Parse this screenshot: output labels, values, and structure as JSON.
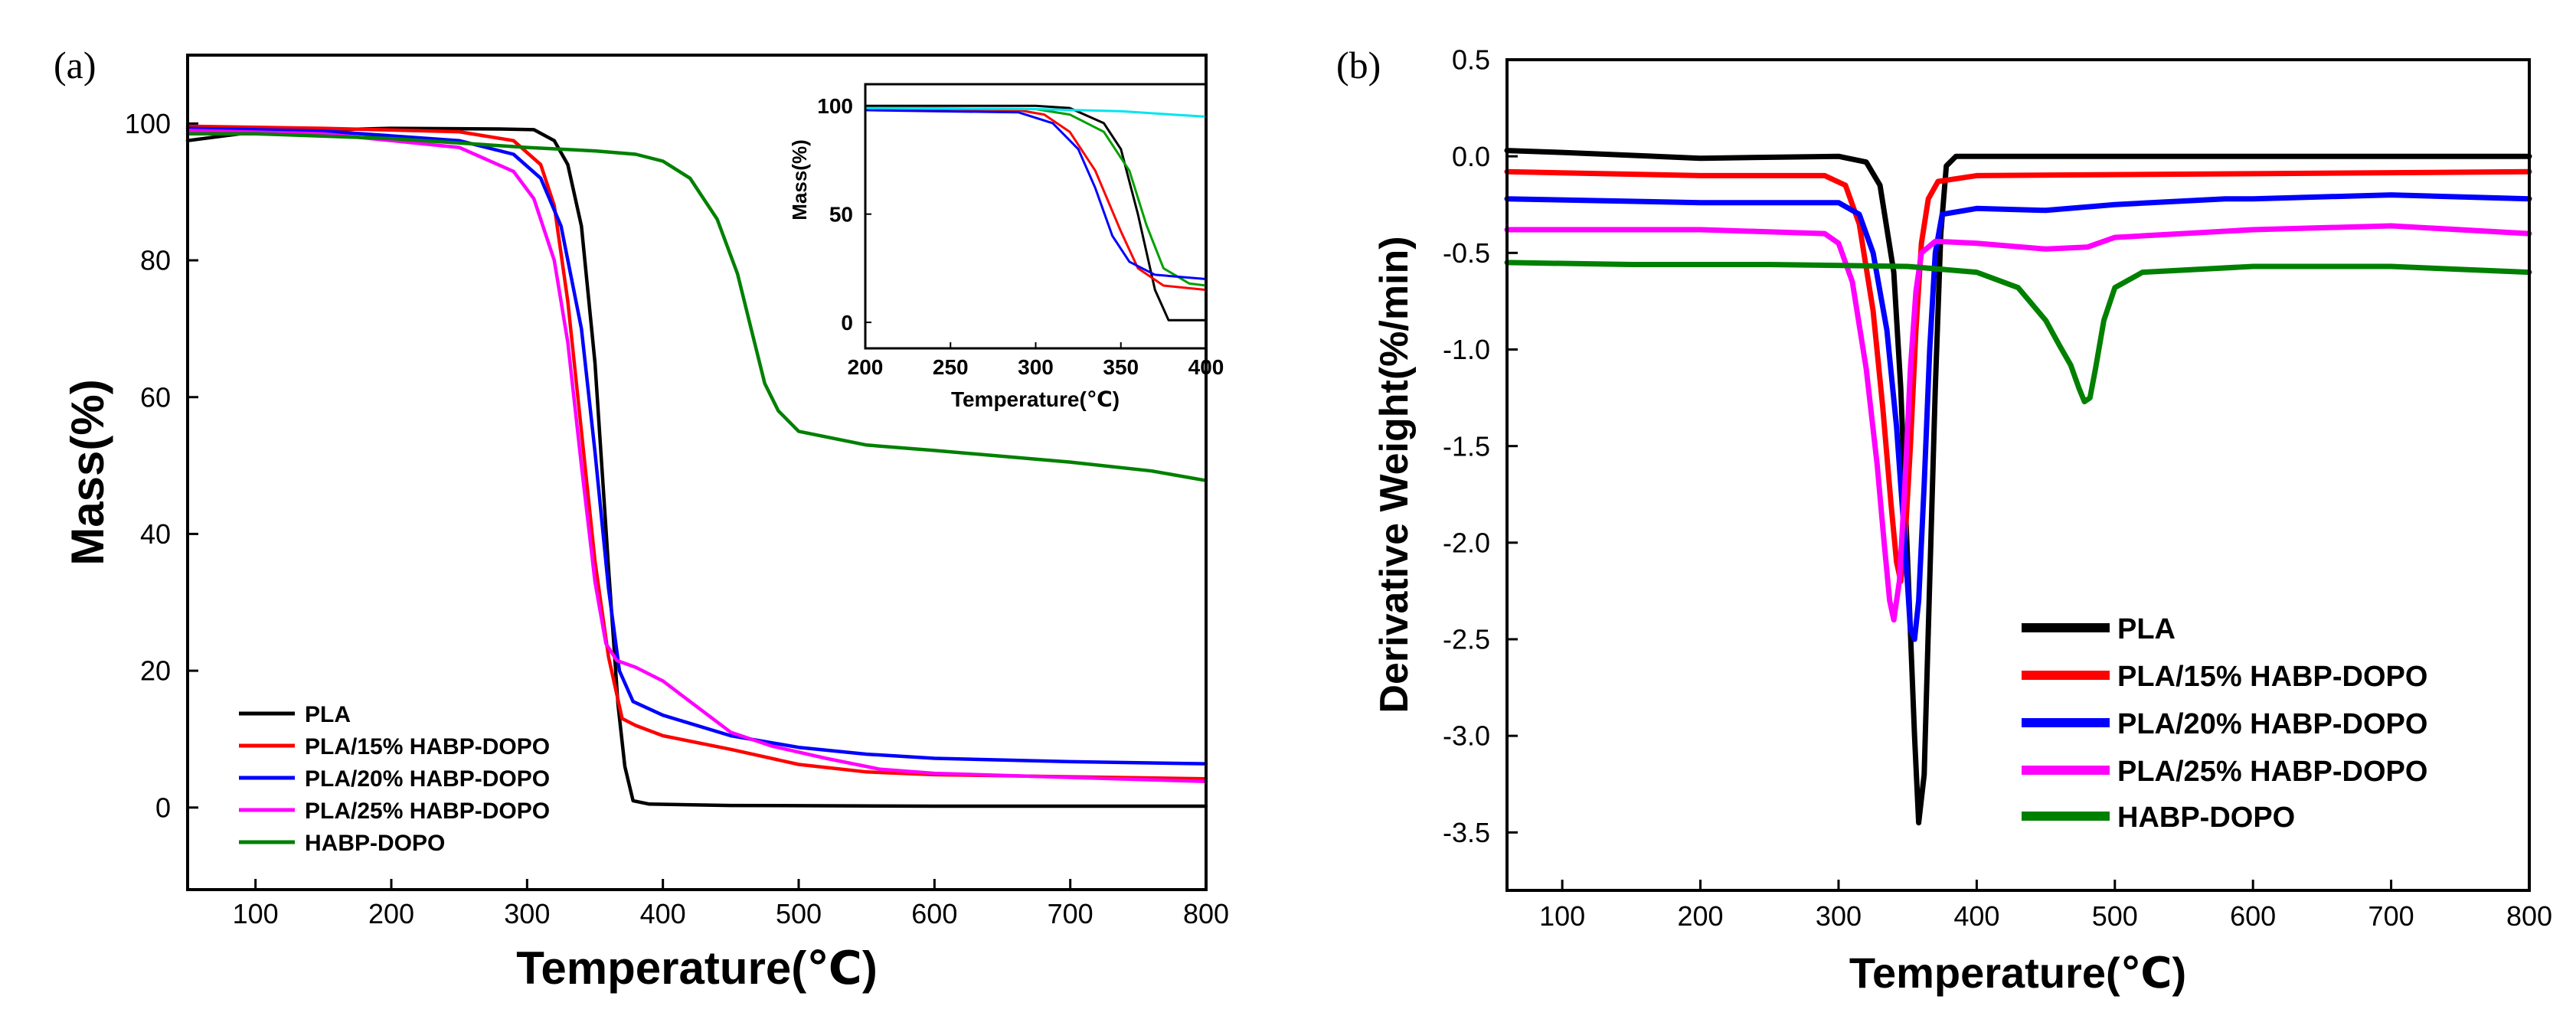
{
  "chart_data": [
    {
      "type": "line",
      "panel_label": "(a)",
      "title": "",
      "xlabel": "Temperature(℃)",
      "ylabel": "Mass(%)",
      "xlim": [
        50,
        800
      ],
      "ylim": [
        -12,
        110
      ],
      "xticks": [
        100,
        200,
        300,
        400,
        500,
        600,
        700,
        800
      ],
      "yticks": [
        0,
        20,
        40,
        60,
        80,
        100
      ],
      "legend_position": "bottom-left",
      "series": [
        {
          "name": "PLA",
          "color": "#000000",
          "points": [
            [
              50,
              97.5
            ],
            [
              100,
              98.8
            ],
            [
              200,
              99.3
            ],
            [
              280,
              99.2
            ],
            [
              305,
              99.1
            ],
            [
              320,
              97.5
            ],
            [
              330,
              94
            ],
            [
              340,
              85
            ],
            [
              350,
              65
            ],
            [
              360,
              35
            ],
            [
              367,
              15
            ],
            [
              372,
              6
            ],
            [
              378,
              1
            ],
            [
              390,
              0.5
            ],
            [
              450,
              0.3
            ],
            [
              600,
              0.2
            ],
            [
              800,
              0.2
            ]
          ]
        },
        {
          "name": "PLA/15% HABP-DOPO",
          "color": "#ff0000",
          "points": [
            [
              50,
              99.6
            ],
            [
              150,
              99.3
            ],
            [
              250,
              98.8
            ],
            [
              290,
              97.5
            ],
            [
              310,
              94
            ],
            [
              320,
              88
            ],
            [
              330,
              74
            ],
            [
              340,
              55
            ],
            [
              350,
              36
            ],
            [
              360,
              22
            ],
            [
              370,
              13
            ],
            [
              380,
              12
            ],
            [
              400,
              10.5
            ],
            [
              450,
              8.5
            ],
            [
              500,
              6.3
            ],
            [
              550,
              5.2
            ],
            [
              600,
              4.8
            ],
            [
              700,
              4.5
            ],
            [
              800,
              4.2
            ]
          ]
        },
        {
          "name": "PLA/20% HABP-DOPO",
          "color": "#0000ff",
          "points": [
            [
              50,
              99.3
            ],
            [
              150,
              98.9
            ],
            [
              250,
              97.5
            ],
            [
              290,
              95.5
            ],
            [
              310,
              92
            ],
            [
              325,
              85
            ],
            [
              340,
              70
            ],
            [
              350,
              52
            ],
            [
              360,
              32
            ],
            [
              368,
              20
            ],
            [
              378,
              15.5
            ],
            [
              400,
              13.5
            ],
            [
              450,
              10.5
            ],
            [
              500,
              8.8
            ],
            [
              550,
              7.8
            ],
            [
              600,
              7.2
            ],
            [
              700,
              6.7
            ],
            [
              800,
              6.4
            ]
          ]
        },
        {
          "name": "PLA/25% HABP-DOPO",
          "color": "#ff00ff",
          "points": [
            [
              50,
              99
            ],
            [
              150,
              98.5
            ],
            [
              250,
              96.5
            ],
            [
              290,
              93
            ],
            [
              305,
              89
            ],
            [
              320,
              80
            ],
            [
              330,
              68
            ],
            [
              340,
              50
            ],
            [
              350,
              33
            ],
            [
              358,
              24
            ],
            [
              366,
              21.5
            ],
            [
              380,
              20.5
            ],
            [
              400,
              18.5
            ],
            [
              420,
              15.5
            ],
            [
              450,
              11
            ],
            [
              480,
              9
            ],
            [
              520,
              7.2
            ],
            [
              560,
              5.6
            ],
            [
              600,
              5
            ],
            [
              700,
              4.4
            ],
            [
              800,
              3.8
            ]
          ]
        },
        {
          "name": "HABP-DOPO",
          "color": "#008000",
          "points": [
            [
              50,
              98.5
            ],
            [
              100,
              98.5
            ],
            [
              200,
              97.8
            ],
            [
              300,
              96.5
            ],
            [
              350,
              96
            ],
            [
              380,
              95.5
            ],
            [
              400,
              94.5
            ],
            [
              420,
              92
            ],
            [
              440,
              86
            ],
            [
              455,
              78
            ],
            [
              465,
              70
            ],
            [
              475,
              62
            ],
            [
              485,
              58
            ],
            [
              500,
              55
            ],
            [
              550,
              53
            ],
            [
              600,
              52.2
            ],
            [
              700,
              50.5
            ],
            [
              760,
              49.2
            ],
            [
              800,
              47.8
            ]
          ]
        }
      ],
      "inset": {
        "xlabel": "Temperature(℃)",
        "ylabel": "Mass(%)",
        "xlim": [
          200,
          400
        ],
        "ylim": [
          -12,
          110
        ],
        "xticks": [
          200,
          250,
          300,
          350,
          400
        ],
        "yticks": [
          0,
          50,
          100
        ],
        "series": [
          {
            "color": "#000000",
            "points": [
              [
                200,
                100
              ],
              [
                300,
                100
              ],
              [
                320,
                99
              ],
              [
                340,
                92
              ],
              [
                350,
                80
              ],
              [
                360,
                50
              ],
              [
                370,
                15
              ],
              [
                378,
                1
              ],
              [
                400,
                1
              ]
            ]
          },
          {
            "color": "#ff0000",
            "points": [
              [
                200,
                99
              ],
              [
                290,
                98
              ],
              [
                305,
                96
              ],
              [
                320,
                88
              ],
              [
                335,
                70
              ],
              [
                350,
                42
              ],
              [
                360,
                25
              ],
              [
                375,
                17
              ],
              [
                400,
                15
              ]
            ]
          },
          {
            "color": "#00a000",
            "points": [
              [
                200,
                99
              ],
              [
                300,
                98.5
              ],
              [
                320,
                96
              ],
              [
                340,
                88
              ],
              [
                355,
                70
              ],
              [
                365,
                45
              ],
              [
                375,
                25
              ],
              [
                390,
                18
              ],
              [
                400,
                17
              ]
            ]
          },
          {
            "color": "#0000ff",
            "points": [
              [
                200,
                98
              ],
              [
                290,
                97
              ],
              [
                310,
                92
              ],
              [
                325,
                80
              ],
              [
                335,
                62
              ],
              [
                345,
                40
              ],
              [
                355,
                28
              ],
              [
                370,
                22
              ],
              [
                400,
                20
              ]
            ]
          },
          {
            "color": "#00e5ee",
            "points": [
              [
                200,
                99
              ],
              [
                300,
                98.5
              ],
              [
                350,
                97.5
              ],
              [
                380,
                96
              ],
              [
                400,
                95
              ]
            ]
          }
        ]
      }
    },
    {
      "type": "line",
      "panel_label": "(b)",
      "title": "",
      "xlabel": "Temperature(℃)",
      "ylabel": "Derivative Weight(%/min)",
      "xlim": [
        60,
        800
      ],
      "ylim": [
        -3.8,
        0.5
      ],
      "xticks": [
        100,
        200,
        300,
        400,
        500,
        600,
        700,
        800
      ],
      "yticks": [
        0.5,
        0.0,
        -0.5,
        -1.0,
        -1.5,
        -2.0,
        -2.5,
        -3.0,
        -3.5
      ],
      "ytick_labels": [
        "0.5",
        "0.0",
        "-0.5",
        "-1.0",
        "-1.5",
        "-2.0",
        "-2.5",
        "-3.0",
        "-3.5"
      ],
      "legend_position": "bottom-right",
      "series": [
        {
          "name": "PLA",
          "color": "#000000",
          "points": [
            [
              60,
              0.03
            ],
            [
              100,
              0.02
            ],
            [
              200,
              -0.01
            ],
            [
              300,
              0.0
            ],
            [
              320,
              -0.03
            ],
            [
              330,
              -0.15
            ],
            [
              340,
              -0.6
            ],
            [
              345,
              -1.2
            ],
            [
              350,
              -2.1
            ],
            [
              355,
              -3.0
            ],
            [
              358,
              -3.45
            ],
            [
              362,
              -3.2
            ],
            [
              366,
              -2.2
            ],
            [
              370,
              -1.2
            ],
            [
              374,
              -0.4
            ],
            [
              378,
              -0.05
            ],
            [
              385,
              0.0
            ],
            [
              500,
              0.0
            ],
            [
              600,
              0.0
            ],
            [
              700,
              0.0
            ],
            [
              800,
              0.0
            ]
          ]
        },
        {
          "name": "PLA/15% HABP-DOPO",
          "color": "#ff0000",
          "points": [
            [
              60,
              -0.08
            ],
            [
              200,
              -0.1
            ],
            [
              290,
              -0.1
            ],
            [
              305,
              -0.15
            ],
            [
              315,
              -0.35
            ],
            [
              325,
              -0.8
            ],
            [
              332,
              -1.3
            ],
            [
              338,
              -1.8
            ],
            [
              342,
              -2.1
            ],
            [
              345,
              -2.2
            ],
            [
              348,
              -2.0
            ],
            [
              352,
              -1.5
            ],
            [
              356,
              -0.9
            ],
            [
              360,
              -0.45
            ],
            [
              365,
              -0.22
            ],
            [
              372,
              -0.13
            ],
            [
              400,
              -0.1
            ],
            [
              600,
              -0.09
            ],
            [
              800,
              -0.08
            ]
          ]
        },
        {
          "name": "PLA/20% HABP-DOPO",
          "color": "#0000ff",
          "points": [
            [
              60,
              -0.22
            ],
            [
              200,
              -0.24
            ],
            [
              300,
              -0.24
            ],
            [
              315,
              -0.3
            ],
            [
              325,
              -0.5
            ],
            [
              335,
              -0.9
            ],
            [
              342,
              -1.4
            ],
            [
              348,
              -2.0
            ],
            [
              352,
              -2.45
            ],
            [
              355,
              -2.5
            ],
            [
              358,
              -2.3
            ],
            [
              362,
              -1.7
            ],
            [
              366,
              -1.0
            ],
            [
              370,
              -0.5
            ],
            [
              375,
              -0.3
            ],
            [
              400,
              -0.27
            ],
            [
              450,
              -0.28
            ],
            [
              500,
              -0.25
            ],
            [
              580,
              -0.22
            ],
            [
              600,
              -0.22
            ],
            [
              700,
              -0.2
            ],
            [
              800,
              -0.22
            ]
          ]
        },
        {
          "name": "PLA/25% HABP-DOPO",
          "color": "#ff00ff",
          "points": [
            [
              60,
              -0.38
            ],
            [
              200,
              -0.38
            ],
            [
              290,
              -0.4
            ],
            [
              300,
              -0.45
            ],
            [
              310,
              -0.65
            ],
            [
              320,
              -1.1
            ],
            [
              328,
              -1.6
            ],
            [
              333,
              -2.0
            ],
            [
              337,
              -2.3
            ],
            [
              340,
              -2.4
            ],
            [
              344,
              -2.2
            ],
            [
              348,
              -1.7
            ],
            [
              352,
              -1.1
            ],
            [
              356,
              -0.7
            ],
            [
              360,
              -0.5
            ],
            [
              370,
              -0.44
            ],
            [
              400,
              -0.45
            ],
            [
              450,
              -0.48
            ],
            [
              480,
              -0.47
            ],
            [
              500,
              -0.42
            ],
            [
              600,
              -0.38
            ],
            [
              700,
              -0.36
            ],
            [
              800,
              -0.4
            ]
          ]
        },
        {
          "name": "HABP-DOPO",
          "color": "#008000",
          "points": [
            [
              60,
              -0.55
            ],
            [
              150,
              -0.56
            ],
            [
              250,
              -0.56
            ],
            [
              350,
              -0.57
            ],
            [
              400,
              -0.6
            ],
            [
              430,
              -0.68
            ],
            [
              450,
              -0.85
            ],
            [
              460,
              -0.98
            ],
            [
              468,
              -1.08
            ],
            [
              474,
              -1.2
            ],
            [
              478,
              -1.27
            ],
            [
              482,
              -1.25
            ],
            [
              486,
              -1.1
            ],
            [
              492,
              -0.85
            ],
            [
              500,
              -0.68
            ],
            [
              520,
              -0.6
            ],
            [
              600,
              -0.57
            ],
            [
              700,
              -0.57
            ],
            [
              800,
              -0.6
            ]
          ]
        }
      ]
    }
  ]
}
